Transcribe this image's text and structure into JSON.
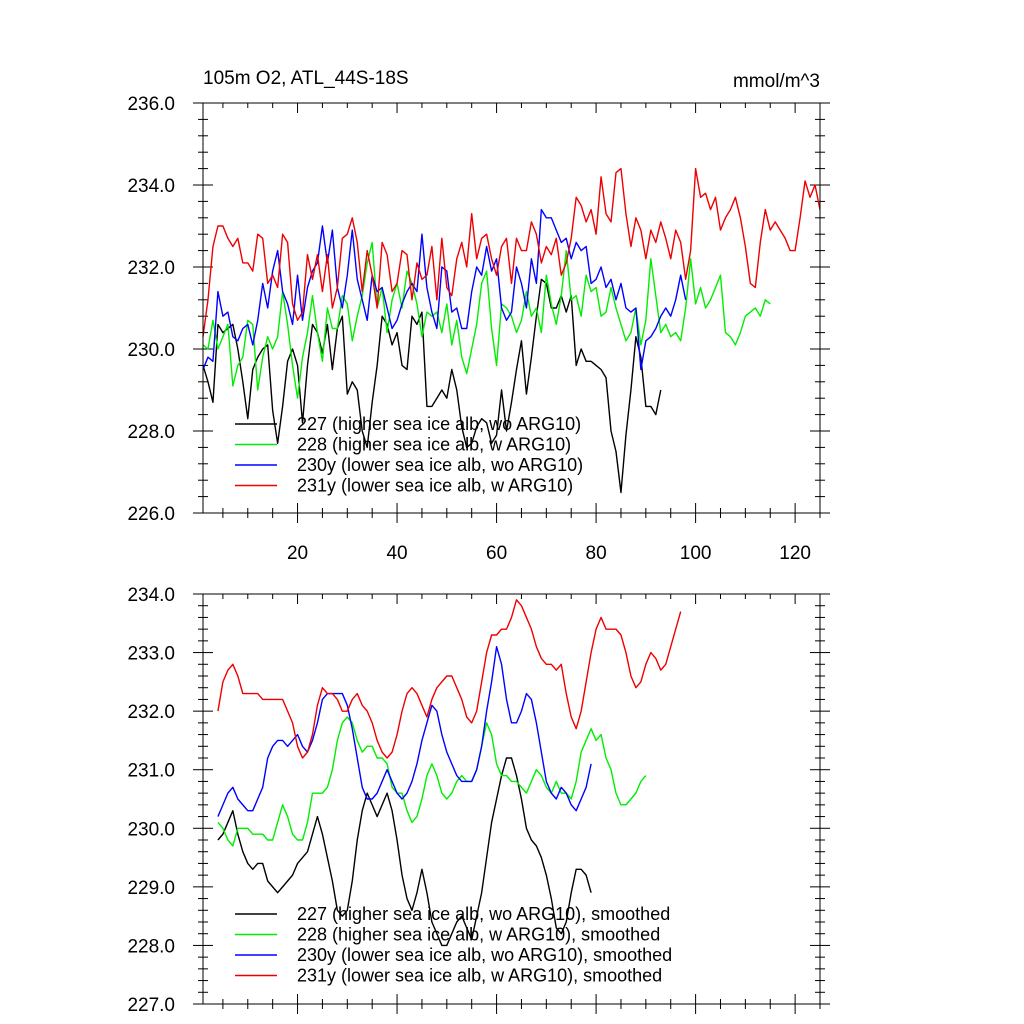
{
  "chart_data": [
    {
      "type": "line",
      "title": "105m O2, ATL_44S-18S",
      "units": "mmol/m^3",
      "xlabel": "",
      "ylabel": "",
      "xlim": [
        1,
        125
      ],
      "ylim": [
        226,
        236
      ],
      "x_ticks": [
        20,
        40,
        60,
        80,
        100,
        120
      ],
      "y_ticks": [
        "226.0",
        "228.0",
        "230.0",
        "232.0",
        "234.0",
        "236.0"
      ],
      "legend_position": "bottom-left",
      "series": [
        {
          "name": "227 (higher sea ice alb, wo ARG10)",
          "color": "#000000",
          "x_start": 1,
          "values": [
            229.6,
            229.2,
            228.7,
            230.6,
            230.4,
            230.5,
            230.6,
            230.0,
            229.2,
            228.3,
            229.5,
            229.8,
            230.0,
            230.1,
            228.5,
            227.7,
            228.6,
            229.7,
            230.0,
            229.6,
            228.2,
            229.6,
            230.6,
            230.4,
            229.9,
            230.6,
            229.5,
            230.5,
            230.8,
            228.9,
            229.2,
            229.0,
            228.0,
            227.6,
            228.7,
            229.6,
            230.8,
            230.6,
            230.1,
            230.4,
            229.6,
            229.5,
            230.8,
            230.6,
            230.9,
            228.6,
            228.6,
            228.8,
            229.0,
            228.8,
            229.5,
            229.0,
            228.1,
            227.6,
            227.7,
            228.1,
            228.3,
            228.2,
            227.7,
            227.9,
            229.0,
            228.0,
            228.7,
            229.5,
            230.2,
            228.9,
            229.8,
            230.8,
            231.7,
            231.6,
            231.0,
            231.0,
            231.3,
            230.9,
            231.3,
            229.6,
            230.0,
            229.7,
            229.7,
            229.6,
            229.5,
            229.3,
            228.0,
            227.5,
            226.5,
            227.9,
            229.0,
            230.3,
            229.8,
            228.6,
            228.6,
            228.4,
            229.0
          ]
        },
        {
          "name": "228 (higher sea ice alb, w ARG10)",
          "color": "#00ee00",
          "x_start": 1,
          "values": [
            230.1,
            230.0,
            230.7,
            230.0,
            230.3,
            230.6,
            229.1,
            229.6,
            229.8,
            230.7,
            230.6,
            229.0,
            229.8,
            230.3,
            230.0,
            230.3,
            231.4,
            230.6,
            229.6,
            228.8,
            229.8,
            230.4,
            231.3,
            230.4,
            229.7,
            231.0,
            230.5,
            230.5,
            231.3,
            231.1,
            230.2,
            230.8,
            231.3,
            232.1,
            232.6,
            231.0,
            231.5,
            230.4,
            231.2,
            231.6,
            231.0,
            231.9,
            231.6,
            231.1,
            230.3,
            230.9,
            230.8,
            230.9,
            230.4,
            231.1,
            230.1,
            230.7,
            229.8,
            229.4,
            230.0,
            230.6,
            231.6,
            231.9,
            230.5,
            229.6,
            231.1,
            231.0,
            230.8,
            230.4,
            230.7,
            231.4,
            230.8,
            231.0,
            230.4,
            231.8,
            231.1,
            230.6,
            231.3,
            232.4,
            231.2,
            231.3,
            230.8,
            231.8,
            231.4,
            231.5,
            230.8,
            230.9,
            231.5,
            231.0,
            230.6,
            230.2,
            230.4,
            231.0,
            230.1,
            230.7,
            232.2,
            231.3,
            230.4,
            230.6,
            230.3,
            230.4,
            230.2,
            231.0,
            232.2,
            231.1,
            231.5,
            231.0,
            231.2,
            231.5,
            231.8,
            230.4,
            230.3,
            230.1,
            230.4,
            230.8,
            230.9,
            231.0,
            230.8,
            231.2,
            231.1
          ]
        },
        {
          "name": "230y (lower sea ice alb, wo ARG10)",
          "color": "#0000ff",
          "x_start": 1,
          "values": [
            229.5,
            229.8,
            229.7,
            231.4,
            230.8,
            230.9,
            230.3,
            230.2,
            230.5,
            230.6,
            230.1,
            230.7,
            231.6,
            231.0,
            231.9,
            232.4,
            231.4,
            231.1,
            230.6,
            231.8,
            230.7,
            231.5,
            231.9,
            232.1,
            233.0,
            232.1,
            232.9,
            231.5,
            231.0,
            231.8,
            232.9,
            231.7,
            231.2,
            230.7,
            231.8,
            231.4,
            231.5,
            231.0,
            230.5,
            230.7,
            231.1,
            231.4,
            231.6,
            231.4,
            232.8,
            231.5,
            230.9,
            230.5,
            232.0,
            231.9,
            230.9,
            231.0,
            230.5,
            230.5,
            231.4,
            232.0,
            231.8,
            232.5,
            231.9,
            232.2,
            231.0,
            230.7,
            230.9,
            232.0,
            231.6,
            231.0,
            232.2,
            231.6,
            233.4,
            233.2,
            233.2,
            232.9,
            232.6,
            232.7,
            232.2,
            232.6,
            232.4,
            232.5,
            231.6,
            231.7,
            232.0,
            231.5,
            231.7,
            231.2,
            231.6,
            231.0,
            230.9,
            231.0,
            229.5,
            230.2,
            230.3,
            230.5,
            230.8,
            231.0,
            230.8,
            231.2,
            231.8,
            231.2
          ]
        },
        {
          "name": "231y (lower sea ice alb, w ARG10)",
          "color": "#ee0000",
          "x_start": 1,
          "values": [
            230.3,
            231.2,
            232.5,
            233.0,
            233.0,
            232.7,
            232.5,
            232.7,
            232.1,
            232.1,
            231.9,
            232.8,
            232.7,
            231.6,
            231.8,
            231.5,
            232.8,
            232.6,
            231.1,
            230.7,
            230.9,
            232.3,
            231.7,
            232.3,
            231.4,
            232.3,
            231.0,
            231.5,
            232.7,
            232.8,
            233.2,
            232.6,
            231.4,
            232.4,
            231.8,
            231.0,
            232.6,
            232.3,
            231.4,
            231.6,
            232.4,
            232.3,
            231.2,
            232.1,
            231.7,
            231.8,
            232.5,
            231.2,
            232.7,
            231.5,
            231.3,
            232.2,
            232.6,
            232.0,
            233.3,
            232.2,
            232.7,
            232.8,
            232.2,
            231.8,
            232.5,
            232.7,
            231.6,
            232.7,
            232.4,
            232.4,
            233.1,
            232.8,
            232.1,
            232.5,
            232.3,
            232.7,
            231.8,
            232.1,
            232.7,
            233.7,
            233.5,
            233.1,
            233.4,
            232.8,
            234.2,
            233.3,
            233.1,
            234.3,
            234.4,
            233.3,
            232.5,
            233.2,
            232.9,
            232.2,
            232.9,
            232.6,
            233.1,
            232.7,
            232.2,
            232.9,
            232.6,
            231.7,
            232.4,
            234.4,
            233.7,
            233.8,
            233.4,
            233.7,
            232.9,
            233.2,
            233.4,
            233.7,
            233.2,
            232.5,
            231.6,
            231.5,
            232.6,
            233.4,
            232.9,
            233.1,
            232.9,
            232.7,
            232.4,
            232.4,
            233.2,
            234.1,
            233.7,
            234.0,
            233.4
          ]
        }
      ]
    },
    {
      "type": "line",
      "title": "",
      "xlabel": "",
      "ylabel": "",
      "xlim": [
        1,
        125
      ],
      "ylim": [
        227,
        234
      ],
      "y_ticks": [
        "227.0",
        "228.0",
        "229.0",
        "230.0",
        "231.0",
        "232.0",
        "233.0",
        "234.0"
      ],
      "legend_position": "bottom-left",
      "series": [
        {
          "name": "227 (higher sea ice alb, wo ARG10), smoothed",
          "color": "#000000",
          "x_start": 4,
          "values": [
            229.8,
            229.9,
            230.1,
            230.3,
            229.9,
            229.6,
            229.4,
            229.3,
            229.4,
            229.4,
            229.1,
            229.0,
            228.9,
            229.0,
            229.1,
            229.2,
            229.4,
            229.5,
            229.6,
            229.9,
            230.2,
            229.9,
            229.5,
            229.1,
            228.6,
            228.5,
            228.6,
            229.1,
            229.8,
            230.3,
            230.6,
            230.4,
            230.2,
            230.4,
            230.6,
            230.3,
            229.8,
            229.2,
            228.8,
            228.6,
            228.9,
            229.3,
            228.9,
            228.4,
            228.2,
            228.0,
            228.0,
            228.2,
            228.4,
            228.5,
            228.3,
            228.1,
            228.5,
            228.9,
            229.5,
            230.1,
            230.5,
            230.9,
            231.2,
            231.2,
            230.9,
            230.5,
            230.0,
            229.8,
            229.7,
            229.5,
            229.2,
            228.8,
            228.3,
            228.2,
            228.4,
            228.9,
            229.3,
            229.3,
            229.2,
            228.9
          ]
        },
        {
          "name": "228 (higher sea ice alb, w ARG10), smoothed",
          "color": "#00ee00",
          "x_start": 4,
          "values": [
            230.1,
            230.0,
            229.8,
            229.7,
            230.0,
            230.0,
            230.0,
            229.9,
            229.9,
            229.9,
            229.8,
            229.8,
            230.1,
            230.4,
            230.2,
            229.9,
            229.8,
            229.8,
            230.1,
            230.6,
            230.6,
            230.6,
            230.7,
            231.0,
            231.5,
            231.8,
            231.9,
            231.8,
            231.5,
            231.3,
            231.4,
            231.4,
            231.2,
            231.2,
            231.1,
            230.7,
            230.6,
            230.6,
            230.3,
            230.1,
            230.2,
            230.5,
            230.9,
            231.1,
            230.9,
            230.6,
            230.5,
            230.6,
            230.8,
            230.9,
            230.8,
            230.8,
            231.0,
            231.4,
            231.8,
            231.6,
            231.1,
            230.9,
            230.9,
            230.8,
            230.8,
            230.7,
            230.6,
            230.8,
            231.0,
            230.9,
            230.7,
            230.6,
            230.8,
            230.6,
            230.6,
            230.5,
            230.8,
            231.3,
            231.5,
            231.7,
            231.5,
            231.6,
            231.2,
            231.0,
            230.6,
            230.4,
            230.4,
            230.5,
            230.6,
            230.8,
            230.9
          ]
        },
        {
          "name": "230y (lower sea ice alb, wo ARG10), smoothed",
          "color": "#0000ff",
          "x_start": 4,
          "values": [
            230.2,
            230.4,
            230.6,
            230.7,
            230.5,
            230.4,
            230.3,
            230.3,
            230.5,
            230.7,
            231.2,
            231.4,
            231.5,
            231.5,
            231.4,
            231.5,
            231.6,
            231.4,
            231.3,
            231.5,
            231.8,
            232.2,
            232.3,
            232.3,
            232.3,
            232.3,
            232.1,
            231.7,
            231.2,
            230.7,
            230.5,
            230.5,
            230.6,
            230.8,
            231.0,
            230.8,
            230.6,
            230.5,
            230.6,
            230.8,
            231.1,
            231.5,
            231.8,
            232.1,
            232.0,
            231.6,
            231.3,
            231.1,
            230.9,
            230.8,
            230.8,
            230.8,
            231.0,
            231.4,
            232.0,
            232.5,
            233.1,
            232.8,
            232.2,
            231.8,
            231.8,
            232.0,
            232.3,
            232.2,
            231.8,
            231.3,
            230.8,
            230.6,
            230.5,
            230.7,
            230.6,
            230.4,
            230.3,
            230.5,
            230.7,
            231.1
          ]
        },
        {
          "name": "231y (lower sea ice alb, w ARG10), smoothed",
          "color": "#ee0000",
          "x_start": 4,
          "values": [
            232.0,
            232.5,
            232.7,
            232.8,
            232.6,
            232.3,
            232.3,
            232.3,
            232.3,
            232.2,
            232.2,
            232.2,
            232.2,
            232.2,
            232.0,
            231.8,
            231.4,
            231.2,
            231.3,
            231.6,
            232.1,
            232.4,
            232.3,
            232.3,
            232.2,
            232.0,
            232.0,
            232.2,
            232.3,
            232.1,
            232.0,
            231.8,
            231.5,
            231.3,
            231.2,
            231.3,
            231.6,
            232.0,
            232.3,
            232.4,
            232.3,
            232.1,
            231.9,
            232.2,
            232.4,
            232.5,
            232.6,
            232.6,
            232.4,
            232.2,
            231.9,
            231.8,
            232.0,
            232.5,
            233.0,
            233.3,
            233.3,
            233.4,
            233.4,
            233.6,
            233.9,
            233.8,
            233.6,
            233.4,
            233.1,
            232.9,
            232.8,
            232.8,
            232.7,
            232.8,
            232.3,
            231.9,
            231.7,
            232.0,
            232.5,
            233.0,
            233.4,
            233.6,
            233.4,
            233.4,
            233.4,
            233.3,
            233.0,
            232.6,
            232.4,
            232.5,
            232.8,
            233.0,
            232.9,
            232.7,
            232.8,
            233.1,
            233.4,
            233.7
          ]
        }
      ]
    }
  ]
}
